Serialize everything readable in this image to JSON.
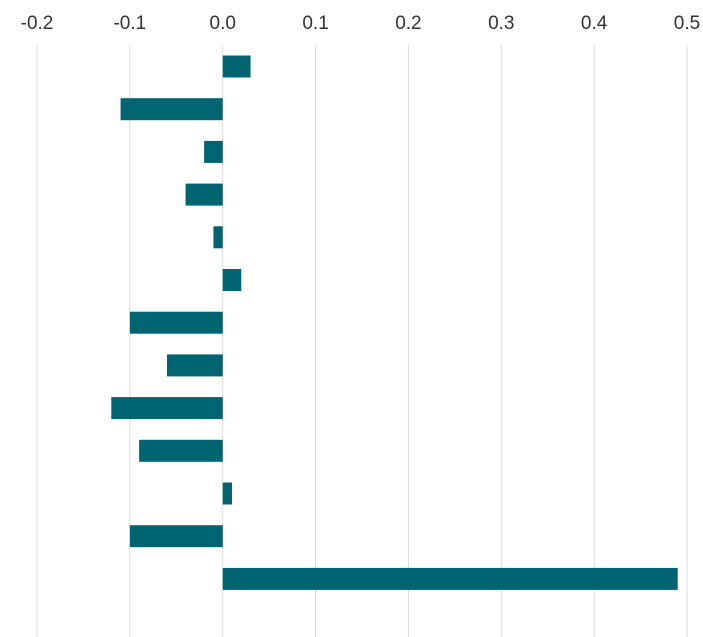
{
  "chart_data": {
    "type": "barh",
    "categories": [
      null,
      null,
      null,
      null,
      null,
      null,
      null,
      null,
      null,
      null,
      null,
      null,
      null
    ],
    "values": [
      0.03,
      -0.11,
      -0.02,
      -0.04,
      -0.01,
      0.02,
      -0.1,
      -0.06,
      -0.12,
      -0.09,
      0.01,
      -0.1,
      0.49
    ],
    "color": "#006570",
    "xlim": [
      -0.2,
      0.5
    ],
    "xticks": [
      -0.2,
      -0.1,
      {
        "value": 0,
        "label": "0.0"
      },
      0.1,
      0.2,
      0.3,
      0.4,
      0.5
    ],
    "grid": true
  }
}
